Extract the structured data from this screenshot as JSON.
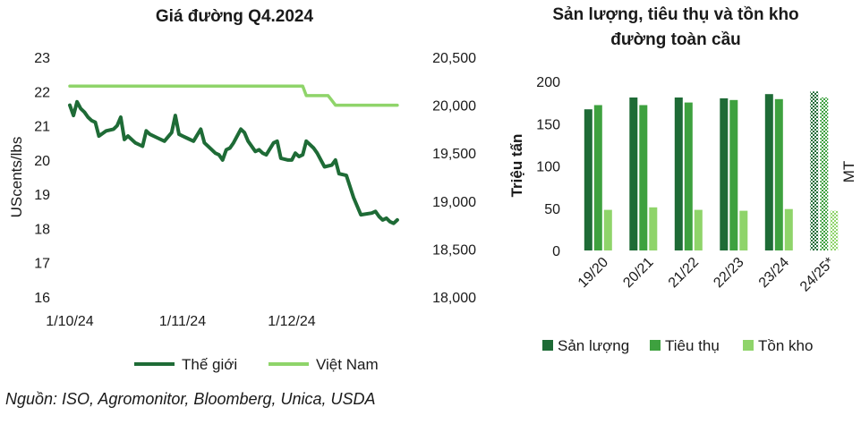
{
  "source": "Nguồn: ISO, Agromonitor, Bloomberg, Unica, USDA",
  "colors": {
    "dark_green": "#1e6b36",
    "mid_green": "#3ea13f",
    "light_green": "#8fd46a"
  },
  "chart_data": [
    {
      "type": "line",
      "title": "Giá đường Q4.2024",
      "ylabel": "UScents/lbs",
      "ylim": [
        16,
        23
      ],
      "yticks": [
        "16",
        "17",
        "18",
        "19",
        "20",
        "21",
        "22",
        "23"
      ],
      "y2lim": [
        18000,
        20500
      ],
      "y2ticks": [
        "18,000",
        "18,500",
        "19,000",
        "19,500",
        "20,000",
        "20,500"
      ],
      "xlim": [
        0,
        92
      ],
      "xticks": [
        {
          "pos": 0,
          "label": "1/10/24"
        },
        {
          "pos": 31,
          "label": "1/11/24"
        },
        {
          "pos": 61,
          "label": "1/12/24"
        }
      ],
      "series": [
        {
          "name": "Thế giới",
          "axis": "left",
          "x": [
            0,
            1,
            2,
            3,
            4,
            5,
            6,
            7,
            8,
            10,
            12,
            13,
            14,
            15,
            16,
            18,
            20,
            21,
            22,
            24,
            26,
            28,
            29,
            30,
            31,
            32,
            34,
            36,
            37,
            38,
            40,
            41,
            42,
            43,
            44,
            45,
            47,
            48,
            49,
            51,
            52,
            53,
            54,
            56,
            57,
            58,
            60,
            61,
            62,
            63,
            64,
            65,
            66,
            67,
            68,
            70,
            72,
            73,
            74,
            76,
            78,
            80,
            83,
            84,
            85,
            86,
            87,
            88,
            89,
            90
          ],
          "values": [
            21.6,
            21.3,
            21.7,
            21.5,
            21.4,
            21.25,
            21.15,
            21.1,
            20.7,
            20.85,
            20.9,
            21.0,
            21.25,
            20.6,
            20.7,
            20.5,
            20.4,
            20.85,
            20.75,
            20.65,
            20.55,
            20.8,
            21.3,
            20.75,
            20.7,
            20.65,
            20.55,
            20.9,
            20.5,
            20.4,
            20.2,
            20.15,
            20.0,
            20.3,
            20.35,
            20.5,
            20.9,
            20.8,
            20.55,
            20.25,
            20.3,
            20.2,
            20.15,
            20.5,
            20.55,
            20.05,
            20.0,
            20.0,
            20.2,
            20.1,
            20.15,
            20.55,
            20.45,
            20.35,
            20.2,
            19.8,
            19.85,
            20.0,
            19.6,
            19.55,
            18.9,
            18.4,
            18.45,
            18.5,
            18.35,
            18.25,
            18.3,
            18.2,
            18.15,
            18.25
          ]
        },
        {
          "name": "Việt Nam",
          "axis": "right",
          "x": [
            0,
            64,
            65,
            71,
            72,
            73,
            90
          ],
          "values": [
            20200,
            20200,
            20100,
            20100,
            20050,
            20000,
            20000
          ]
        }
      ],
      "legend": "bottom"
    },
    {
      "type": "bar",
      "title": "Sản lượng, tiêu thụ và tồn kho đường toàn cầu",
      "title_lines": [
        "Sản lượng, tiêu thụ và tồn kho",
        "đường toàn cầu"
      ],
      "ylabel": "Triệu tấn",
      "y2label": "MT",
      "ylim": [
        0,
        200
      ],
      "yticks": [
        "0",
        "50",
        "100",
        "150",
        "200"
      ],
      "categories": [
        "19/20",
        "20/21",
        "21/22",
        "22/23",
        "23/24",
        "24/25*"
      ],
      "series": [
        {
          "name": "Sản lượng",
          "values": [
            167,
            181,
            181,
            180,
            185,
            188
          ]
        },
        {
          "name": "Tiêu thụ",
          "values": [
            172,
            172,
            175,
            178,
            179,
            181
          ]
        },
        {
          "name": "Tồn kho",
          "values": [
            48,
            51,
            48,
            47,
            49,
            47
          ]
        }
      ],
      "forecast_category": "24/25*",
      "legend": "bottom"
    }
  ]
}
